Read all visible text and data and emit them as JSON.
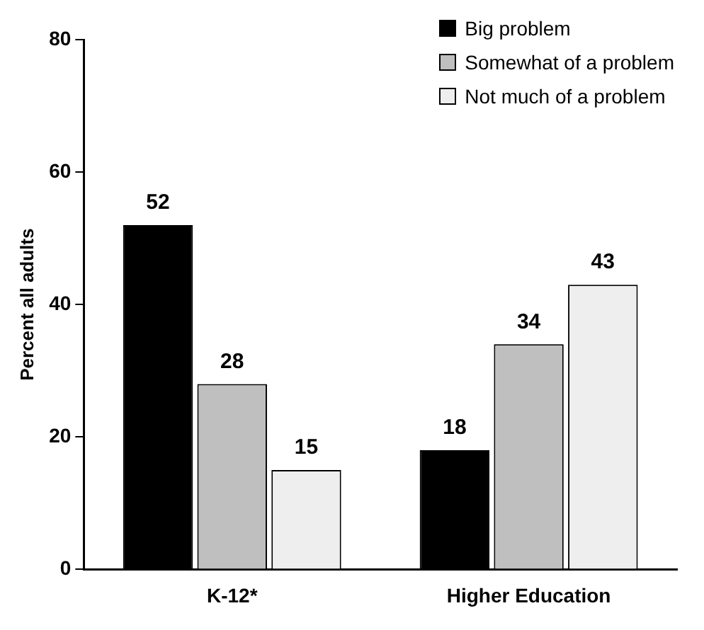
{
  "chart_data": {
    "type": "bar",
    "ylabel": "Percent all adults",
    "categories": [
      "K-12*",
      "Higher Education"
    ],
    "series": [
      {
        "name": "Big problem",
        "color": "#000000",
        "values": [
          52,
          18
        ]
      },
      {
        "name": "Somewhat of a problem",
        "color": "#bfbfbf",
        "values": [
          28,
          34
        ]
      },
      {
        "name": "Not much of a problem",
        "color": "#eeeeee",
        "values": [
          15,
          43
        ]
      }
    ],
    "ylim": [
      0,
      80
    ],
    "yticks": [
      0,
      20,
      40,
      60,
      80
    ],
    "grid": false,
    "legend": "top right",
    "data_labels": true
  }
}
